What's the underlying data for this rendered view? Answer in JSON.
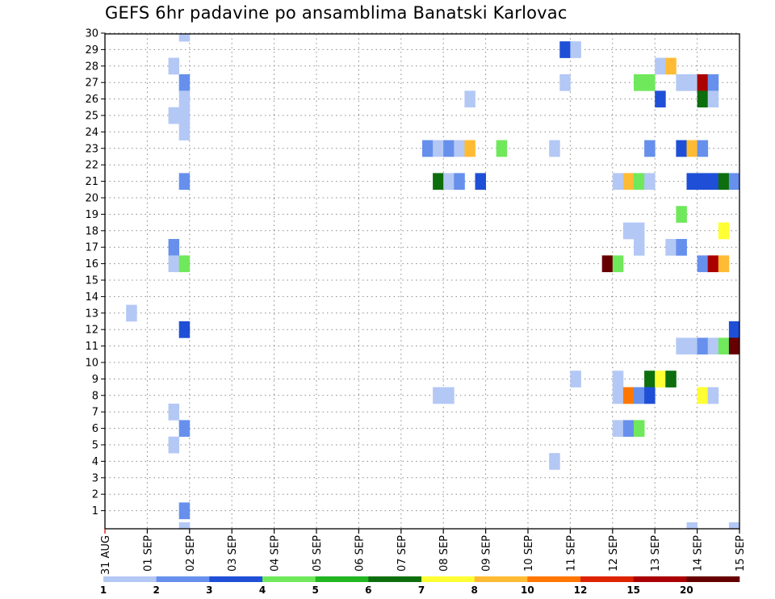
{
  "chart_data": {
    "type": "heatmap",
    "title": "GEFS 6hr padavine po ansamblima Banatski Karlovac",
    "x_tick_labels": [
      "31 AUG",
      "01 SEP",
      "02 SEP",
      "03 SEP",
      "04 SEP",
      "05 SEP",
      "06 SEP",
      "07 SEP",
      "08 SEP",
      "09 SEP",
      "10 SEP",
      "11 SEP",
      "12 SEP",
      "13 SEP",
      "14 SEP",
      "15 SEP"
    ],
    "x_unit": "6-hour step (4 steps per day)",
    "y_tick_labels": [
      "1",
      "2",
      "3",
      "4",
      "5",
      "6",
      "7",
      "8",
      "9",
      "10",
      "11",
      "12",
      "13",
      "14",
      "15",
      "16",
      "17",
      "18",
      "19",
      "20",
      "21",
      "22",
      "23",
      "24",
      "25",
      "26",
      "27",
      "28",
      "29",
      "30"
    ],
    "grid": true,
    "colorbar": {
      "position": "bottom",
      "colors": [
        "#b4c8f5",
        "#6690ec",
        "#1f4fd6",
        "#70e85c",
        "#22b622",
        "#0d6e0d",
        "#ffff33",
        "#ffbb33",
        "#ff7700",
        "#dd2200",
        "#aa0000",
        "#660000"
      ],
      "labels": [
        "1",
        "2",
        "3",
        "4",
        "5",
        "6",
        "7",
        "8",
        "10",
        "12",
        "15",
        "20"
      ]
    },
    "cells": [
      {
        "member": 30,
        "step": 7,
        "level": 1
      },
      {
        "member": 29,
        "step": 43,
        "level": 3
      },
      {
        "member": 29,
        "step": 44,
        "level": 1
      },
      {
        "member": 28,
        "step": 6,
        "level": 1
      },
      {
        "member": 28,
        "step": 52,
        "level": 1
      },
      {
        "member": 28,
        "step": 53,
        "level": 8
      },
      {
        "member": 27,
        "step": 7,
        "level": 2
      },
      {
        "member": 27,
        "step": 43,
        "level": 1
      },
      {
        "member": 27,
        "step": 50,
        "level": 4
      },
      {
        "member": 27,
        "step": 51,
        "level": 4
      },
      {
        "member": 27,
        "step": 54,
        "level": 1
      },
      {
        "member": 27,
        "step": 55,
        "level": 1
      },
      {
        "member": 27,
        "step": 56,
        "level": 11
      },
      {
        "member": 27,
        "step": 57,
        "level": 2
      },
      {
        "member": 26,
        "step": 7,
        "level": 1
      },
      {
        "member": 26,
        "step": 34,
        "level": 1
      },
      {
        "member": 26,
        "step": 52,
        "level": 3
      },
      {
        "member": 26,
        "step": 56,
        "level": 6
      },
      {
        "member": 26,
        "step": 57,
        "level": 1
      },
      {
        "member": 25,
        "step": 6,
        "level": 1
      },
      {
        "member": 25,
        "step": 7,
        "level": 1
      },
      {
        "member": 24,
        "step": 7,
        "level": 1
      },
      {
        "member": 23,
        "step": 30,
        "level": 2
      },
      {
        "member": 23,
        "step": 31,
        "level": 1
      },
      {
        "member": 23,
        "step": 32,
        "level": 2
      },
      {
        "member": 23,
        "step": 33,
        "level": 1
      },
      {
        "member": 23,
        "step": 34,
        "level": 8
      },
      {
        "member": 23,
        "step": 37,
        "level": 4
      },
      {
        "member": 23,
        "step": 42,
        "level": 1
      },
      {
        "member": 23,
        "step": 51,
        "level": 2
      },
      {
        "member": 23,
        "step": 54,
        "level": 3
      },
      {
        "member": 23,
        "step": 55,
        "level": 8
      },
      {
        "member": 23,
        "step": 56,
        "level": 2
      },
      {
        "member": 21,
        "step": 7,
        "level": 2
      },
      {
        "member": 21,
        "step": 31,
        "level": 6
      },
      {
        "member": 21,
        "step": 32,
        "level": 1
      },
      {
        "member": 21,
        "step": 33,
        "level": 2
      },
      {
        "member": 21,
        "step": 35,
        "level": 3
      },
      {
        "member": 21,
        "step": 48,
        "level": 1
      },
      {
        "member": 21,
        "step": 49,
        "level": 8
      },
      {
        "member": 21,
        "step": 50,
        "level": 4
      },
      {
        "member": 21,
        "step": 51,
        "level": 1
      },
      {
        "member": 21,
        "step": 55,
        "level": 3
      },
      {
        "member": 21,
        "step": 56,
        "level": 3
      },
      {
        "member": 21,
        "step": 57,
        "level": 3
      },
      {
        "member": 21,
        "step": 58,
        "level": 6
      },
      {
        "member": 21,
        "step": 59,
        "level": 2
      },
      {
        "member": 19,
        "step": 54,
        "level": 4
      },
      {
        "member": 18,
        "step": 49,
        "level": 1
      },
      {
        "member": 18,
        "step": 50,
        "level": 1
      },
      {
        "member": 18,
        "step": 58,
        "level": 7
      },
      {
        "member": 17,
        "step": 6,
        "level": 2
      },
      {
        "member": 17,
        "step": 50,
        "level": 1
      },
      {
        "member": 17,
        "step": 53,
        "level": 1
      },
      {
        "member": 17,
        "step": 54,
        "level": 2
      },
      {
        "member": 16,
        "step": 6,
        "level": 1
      },
      {
        "member": 16,
        "step": 7,
        "level": 4
      },
      {
        "member": 16,
        "step": 47,
        "level": 12
      },
      {
        "member": 16,
        "step": 48,
        "level": 4
      },
      {
        "member": 16,
        "step": 56,
        "level": 2
      },
      {
        "member": 16,
        "step": 57,
        "level": 11
      },
      {
        "member": 16,
        "step": 58,
        "level": 8
      },
      {
        "member": 13,
        "step": 2,
        "level": 1
      },
      {
        "member": 12,
        "step": 7,
        "level": 3
      },
      {
        "member": 12,
        "step": 59,
        "level": 3
      },
      {
        "member": 11,
        "step": 54,
        "level": 1
      },
      {
        "member": 11,
        "step": 55,
        "level": 1
      },
      {
        "member": 11,
        "step": 56,
        "level": 2
      },
      {
        "member": 11,
        "step": 57,
        "level": 1
      },
      {
        "member": 11,
        "step": 58,
        "level": 4
      },
      {
        "member": 11,
        "step": 59,
        "level": 12
      },
      {
        "member": 9,
        "step": 44,
        "level": 1
      },
      {
        "member": 9,
        "step": 48,
        "level": 1
      },
      {
        "member": 9,
        "step": 51,
        "level": 6
      },
      {
        "member": 9,
        "step": 52,
        "level": 7
      },
      {
        "member": 9,
        "step": 53,
        "level": 6
      },
      {
        "member": 8,
        "step": 31,
        "level": 1
      },
      {
        "member": 8,
        "step": 32,
        "level": 1
      },
      {
        "member": 8,
        "step": 48,
        "level": 1
      },
      {
        "member": 8,
        "step": 49,
        "level": 9
      },
      {
        "member": 8,
        "step": 50,
        "level": 2
      },
      {
        "member": 8,
        "step": 51,
        "level": 3
      },
      {
        "member": 8,
        "step": 56,
        "level": 7
      },
      {
        "member": 8,
        "step": 57,
        "level": 1
      },
      {
        "member": 7,
        "step": 6,
        "level": 1
      },
      {
        "member": 6,
        "step": 7,
        "level": 2
      },
      {
        "member": 6,
        "step": 48,
        "level": 1
      },
      {
        "member": 6,
        "step": 49,
        "level": 2
      },
      {
        "member": 6,
        "step": 50,
        "level": 4
      },
      {
        "member": 5,
        "step": 6,
        "level": 1
      },
      {
        "member": 4,
        "step": 42,
        "level": 1
      },
      {
        "member": 1,
        "step": 7,
        "level": 2
      },
      {
        "member": 0,
        "step": 7,
        "level": 1
      },
      {
        "member": 0,
        "step": 55,
        "level": 1
      },
      {
        "member": 0,
        "step": 59,
        "level": 1
      }
    ]
  }
}
